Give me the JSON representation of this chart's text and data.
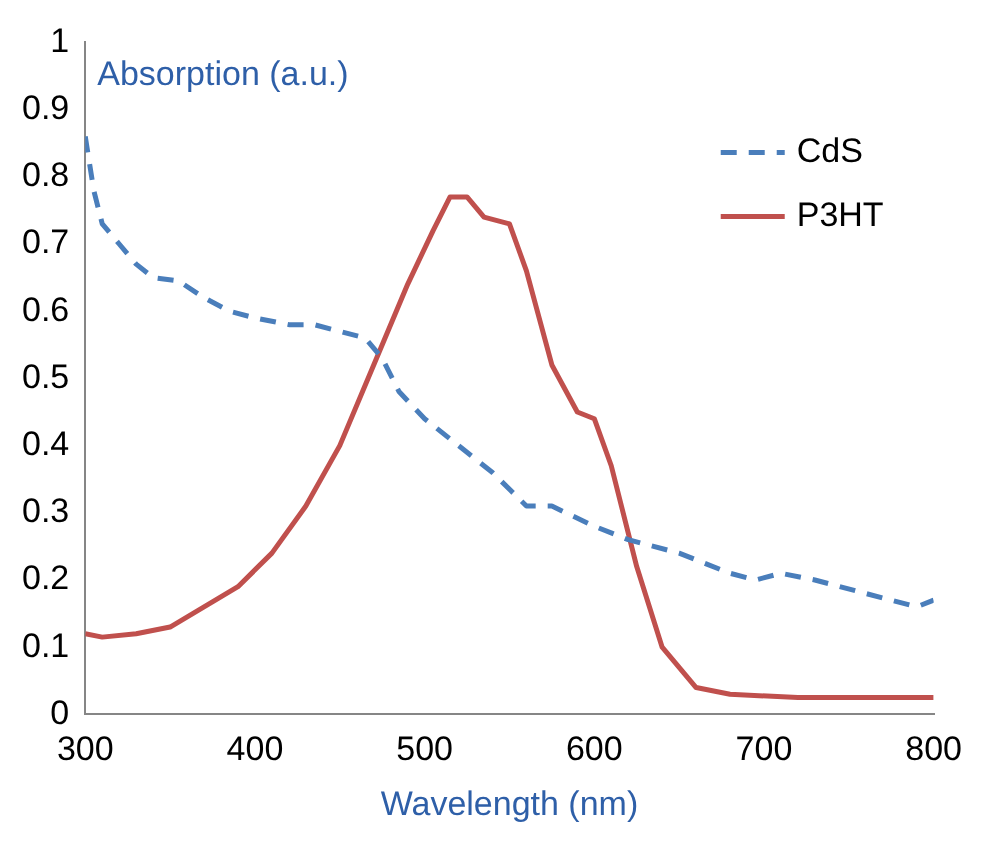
{
  "chart_data": {
    "type": "line",
    "ylabel": "Absorption (a.u.)",
    "xlabel": "Wavelength (nm)",
    "xlim": [
      300,
      800
    ],
    "xticks": [
      300,
      400,
      500,
      600,
      700,
      800
    ],
    "ylim": [
      0,
      1
    ],
    "yticks": [
      0,
      0.1,
      0.2,
      0.3,
      0.4,
      0.5,
      0.6,
      0.7,
      0.8,
      0.9,
      1
    ],
    "grid": false,
    "legend": "top right",
    "marker": "none",
    "series": [
      {
        "name": "CdS",
        "color": "#4a7ebb",
        "line_style": "dashed",
        "x": [
          300,
          305,
          310,
          320,
          330,
          340,
          355,
          370,
          385,
          400,
          420,
          435,
          450,
          465,
          475,
          485,
          500,
          520,
          540,
          560,
          575,
          600,
          620,
          650,
          680,
          695,
          710,
          730,
          760,
          790,
          800
        ],
        "values": [
          0.86,
          0.78,
          0.73,
          0.7,
          0.67,
          0.65,
          0.645,
          0.62,
          0.6,
          0.59,
          0.58,
          0.58,
          0.57,
          0.56,
          0.53,
          0.48,
          0.44,
          0.4,
          0.36,
          0.31,
          0.31,
          0.28,
          0.26,
          0.24,
          0.21,
          0.2,
          0.21,
          0.2,
          0.18,
          0.16,
          0.17
        ]
      },
      {
        "name": "P3HT",
        "color": "#c0504d",
        "line_style": "solid",
        "x": [
          300,
          310,
          330,
          350,
          370,
          390,
          410,
          430,
          450,
          470,
          490,
          505,
          515,
          525,
          535,
          550,
          560,
          575,
          590,
          600,
          610,
          625,
          640,
          660,
          680,
          720,
          800
        ],
        "values": [
          0.12,
          0.115,
          0.12,
          0.13,
          0.16,
          0.19,
          0.24,
          0.31,
          0.4,
          0.52,
          0.64,
          0.72,
          0.77,
          0.77,
          0.74,
          0.73,
          0.66,
          0.52,
          0.45,
          0.44,
          0.37,
          0.22,
          0.1,
          0.04,
          0.03,
          0.025,
          0.025
        ]
      }
    ]
  }
}
